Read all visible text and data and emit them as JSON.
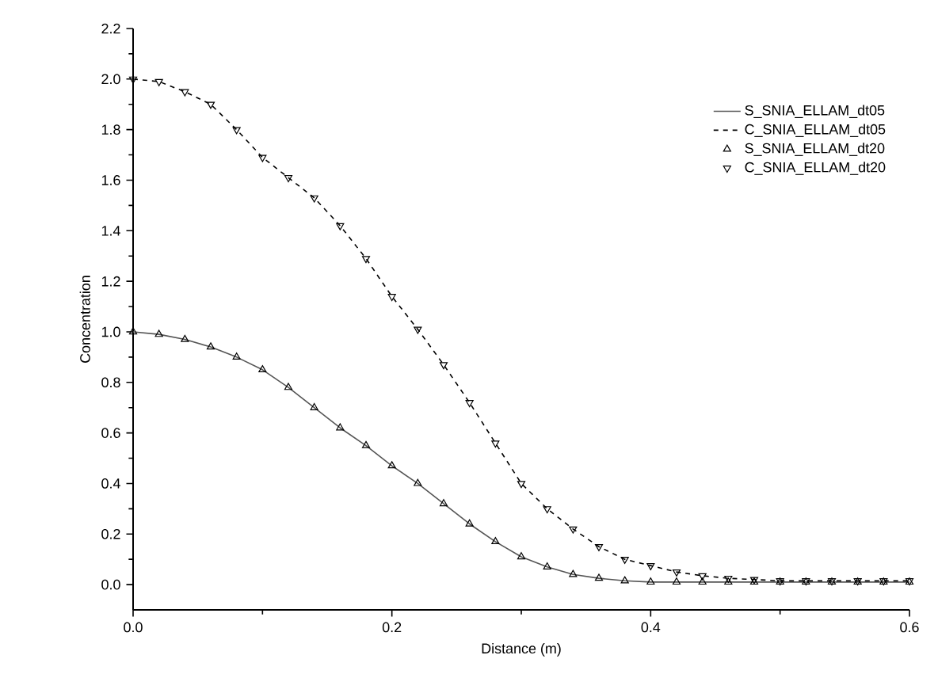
{
  "chart_data": {
    "type": "line",
    "xlabel": "Distance (m)",
    "ylabel": "Concentration",
    "x": [
      0,
      0.02,
      0.04,
      0.06,
      0.08,
      0.1,
      0.12,
      0.14,
      0.16,
      0.18,
      0.2,
      0.22,
      0.24,
      0.26,
      0.28,
      0.3,
      0.32,
      0.34,
      0.36,
      0.38,
      0.4,
      0.42,
      0.44,
      0.46,
      0.48,
      0.5,
      0.52,
      0.54,
      0.56,
      0.58,
      0.6
    ],
    "series": [
      {
        "name": "S_SNIA_ELLAM_dt05",
        "color": "#555555",
        "line_style": "solid",
        "marker": "none",
        "values": [
          1.0,
          0.99,
          0.97,
          0.94,
          0.9,
          0.85,
          0.78,
          0.7,
          0.62,
          0.55,
          0.47,
          0.4,
          0.32,
          0.24,
          0.17,
          0.11,
          0.07,
          0.04,
          0.025,
          0.015,
          0.01,
          0.01,
          0.01,
          0.01,
          0.01,
          0.01,
          0.01,
          0.01,
          0.01,
          0.01,
          0.01
        ]
      },
      {
        "name": "C_SNIA_ELLAM_dt05",
        "color": "#000000",
        "line_style": "dashed",
        "marker": "none",
        "values": [
          2.0,
          1.99,
          1.95,
          1.9,
          1.8,
          1.69,
          1.61,
          1.53,
          1.42,
          1.29,
          1.14,
          1.01,
          0.87,
          0.72,
          0.56,
          0.4,
          0.3,
          0.22,
          0.15,
          0.1,
          0.075,
          0.05,
          0.035,
          0.025,
          0.02,
          0.015,
          0.015,
          0.015,
          0.015,
          0.015,
          0.015
        ]
      },
      {
        "name": "S_SNIA_ELLAM_dt20",
        "type": "scatter",
        "color": "#000000",
        "marker": "triangle",
        "values": [
          1.0,
          0.99,
          0.97,
          0.94,
          0.9,
          0.85,
          0.78,
          0.7,
          0.62,
          0.55,
          0.47,
          0.4,
          0.32,
          0.24,
          0.17,
          0.11,
          0.07,
          0.04,
          0.025,
          0.015,
          0.01,
          0.01,
          0.01,
          0.01,
          0.01,
          0.01,
          0.01,
          0.01,
          0.01,
          0.01,
          0.01
        ]
      },
      {
        "name": "C_SNIA_ELLAM_dt20",
        "type": "scatter",
        "color": "#000000",
        "marker": "triangle down",
        "values": [
          2.0,
          1.99,
          1.95,
          1.9,
          1.8,
          1.69,
          1.61,
          1.53,
          1.42,
          1.29,
          1.14,
          1.01,
          0.87,
          0.72,
          0.56,
          0.4,
          0.3,
          0.22,
          0.15,
          0.1,
          0.075,
          0.05,
          0.035,
          0.025,
          0.02,
          0.015,
          0.015,
          0.015,
          0.015,
          0.015,
          0.015
        ]
      }
    ],
    "xlim": [
      0,
      0.6
    ],
    "xticks": [
      {
        "value": 0,
        "label": "0.0"
      },
      {
        "value": 0.2,
        "label": "0.2"
      },
      {
        "value": 0.4,
        "label": "0.4"
      },
      {
        "value": 0.6,
        "label": "0.6"
      }
    ],
    "ylim": [
      -0.1,
      2.2
    ],
    "yticks": [
      {
        "value": 0,
        "label": "0.0"
      },
      {
        "value": 0.2,
        "label": "0.2"
      },
      {
        "value": 0.4,
        "label": "0.4"
      },
      {
        "value": 0.6,
        "label": "0.6"
      },
      {
        "value": 0.8,
        "label": "0.8"
      },
      {
        "value": 1.0,
        "label": "1.0"
      },
      {
        "value": 1.2,
        "label": "1.2"
      },
      {
        "value": 1.4,
        "label": "1.4"
      },
      {
        "value": 1.6,
        "label": "1.6"
      },
      {
        "value": 1.8,
        "label": "1.8"
      },
      {
        "value": 2.0,
        "label": "2.0"
      },
      {
        "value": 2.2,
        "label": "2.2"
      }
    ],
    "grid": false,
    "legend": "top right"
  }
}
